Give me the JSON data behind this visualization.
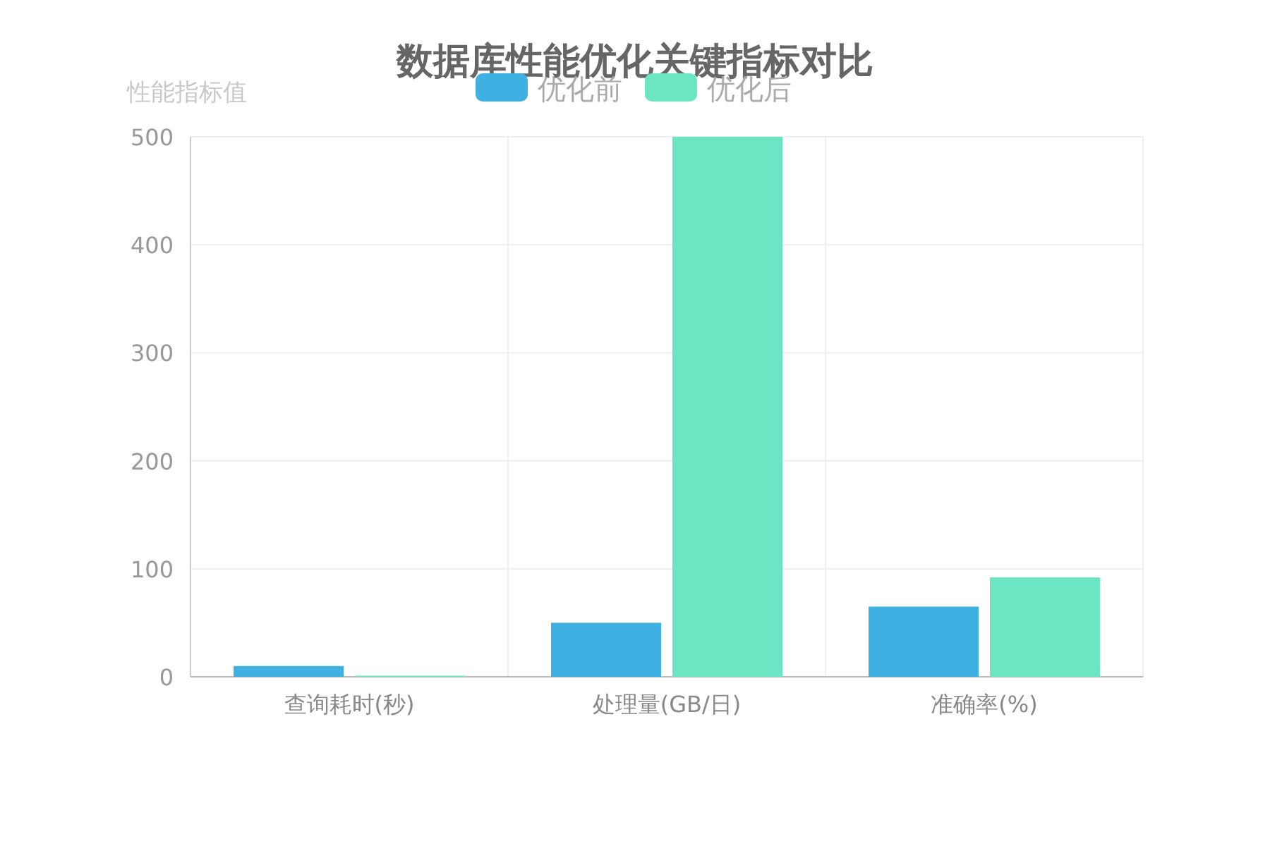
{
  "chart_data": {
    "type": "bar",
    "title": "数据库性能优化关键指标对比",
    "ylabel": "性能指标值",
    "categories": [
      "查询耗时(秒)",
      "处理量(GB/日)",
      "准确率(%)"
    ],
    "series": [
      {
        "name": "优化前",
        "color": "#3eb0e2",
        "values": [
          10,
          50,
          65
        ]
      },
      {
        "name": "优化后",
        "color": "#6ce6c2",
        "values": [
          1,
          500,
          92
        ]
      }
    ],
    "ylim": [
      0,
      500
    ],
    "yticks": [
      0,
      100,
      200,
      300,
      400,
      500
    ],
    "grid": true,
    "legend": "top"
  }
}
